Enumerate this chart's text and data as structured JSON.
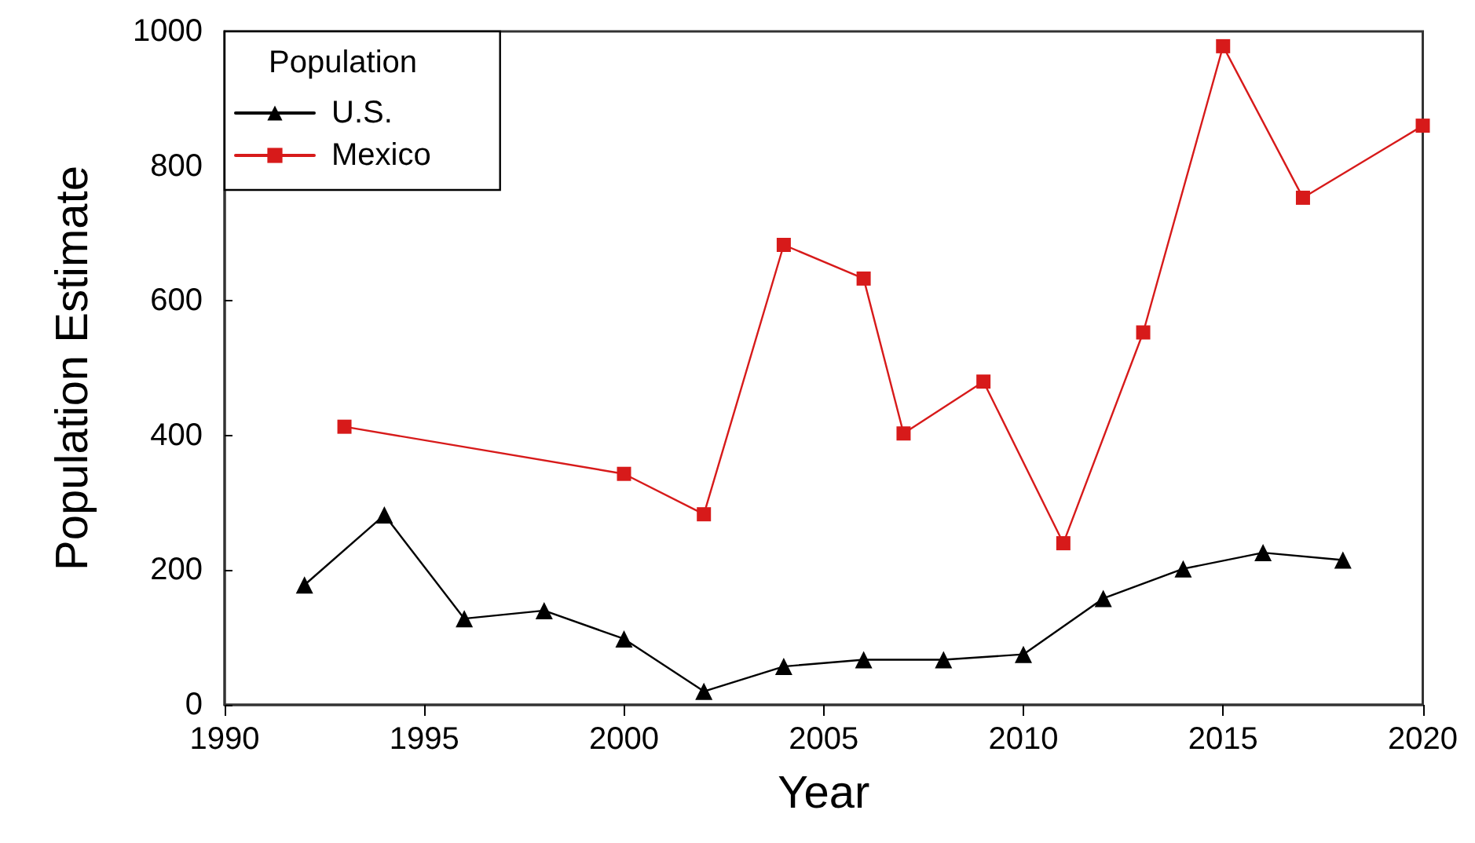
{
  "chart_data": {
    "type": "line",
    "xlabel": "Year",
    "ylabel": "Population Estimate",
    "legend_title": "Population",
    "xlim": [
      1990,
      2020
    ],
    "xticks": [
      1990,
      1995,
      2000,
      2005,
      2010,
      2015,
      2020
    ],
    "ylim": [
      0,
      1000
    ],
    "yticks": [
      0,
      200,
      400,
      600,
      800,
      1000
    ],
    "grid": false,
    "legend": "top left",
    "line_style": "solid",
    "series": [
      {
        "name": "U.S.",
        "color": "#000000",
        "marker": "triangle",
        "x": [
          1992,
          1994,
          1996,
          1998,
          2000,
          2002,
          2004,
          2006,
          2008,
          2010,
          2012,
          2014,
          2016,
          2018
        ],
        "values": [
          178,
          282,
          128,
          140,
          98,
          20,
          57,
          67,
          67,
          75,
          158,
          202,
          226,
          215
        ]
      },
      {
        "name": "Mexico",
        "color": "#d71a1a",
        "marker": "square",
        "x": [
          1993,
          2000,
          2002,
          2004,
          2006,
          2007,
          2009,
          2011,
          2013,
          2015,
          2017,
          2020
        ],
        "values": [
          413,
          343,
          283,
          683,
          633,
          403,
          480,
          240,
          553,
          978,
          753,
          860
        ]
      }
    ]
  }
}
